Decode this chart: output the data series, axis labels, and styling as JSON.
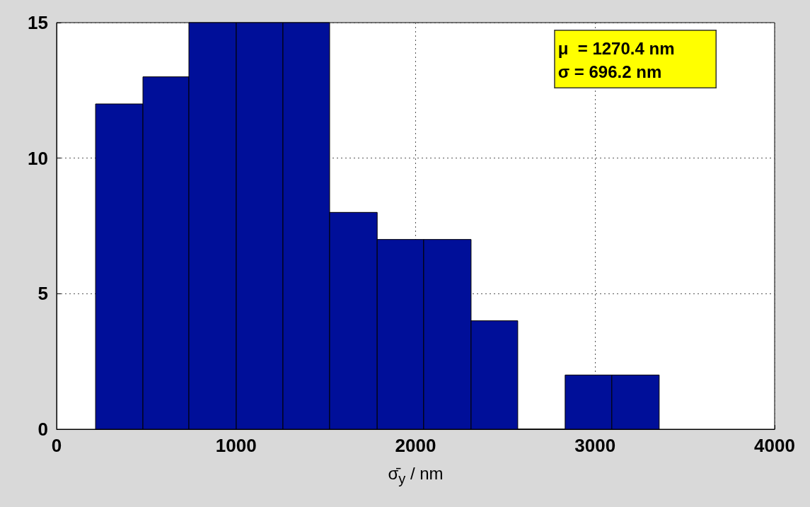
{
  "chart_data": {
    "type": "histogram",
    "xlabel": "σ̄$_{y}$ / nm",
    "bins": [
      217,
      481,
      737,
      1001,
      1261,
      1521,
      1786,
      2045,
      2309,
      2569,
      2833,
      3093,
      3357
    ],
    "values": [
      12,
      13,
      15,
      15,
      15,
      8,
      7,
      7,
      4,
      0,
      2,
      2
    ],
    "color": "#000f99",
    "xlim": [
      0,
      4000
    ],
    "xticks": [
      0,
      1000,
      2000,
      3000,
      4000
    ],
    "ylim": [
      0,
      15
    ],
    "yticks": [
      0,
      5,
      10,
      15
    ],
    "grid": true,
    "annotations": [
      "μ  = 1270.4 nm",
      "σ = 696.2 nm"
    ]
  }
}
